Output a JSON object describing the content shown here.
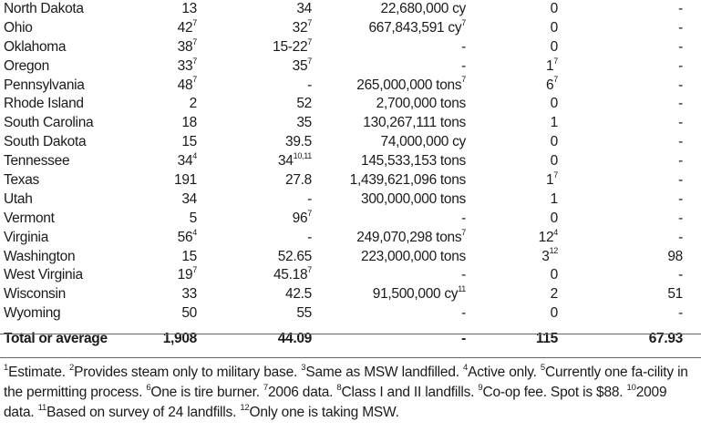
{
  "rows": [
    {
      "state": "North Dakota",
      "facilities": "13",
      "facilities_note": "",
      "fee": "34",
      "fee_note": "",
      "capacity": "22,680,000 cy",
      "capacity_note": "",
      "wte": "0",
      "wte_note": "",
      "last": "-"
    },
    {
      "state": "Ohio",
      "facilities": "42",
      "facilities_note": "7",
      "fee": "32",
      "fee_note": "7",
      "capacity": "667,843,591 cy",
      "capacity_note": "7",
      "wte": "0",
      "wte_note": "",
      "last": "-"
    },
    {
      "state": "Oklahoma",
      "facilities": "38",
      "facilities_note": "7",
      "fee": "15-22",
      "fee_note": "7",
      "capacity": "-",
      "capacity_note": "",
      "wte": "0",
      "wte_note": "",
      "last": "-"
    },
    {
      "state": "Oregon",
      "facilities": "33",
      "facilities_note": "7",
      "fee": "35",
      "fee_note": "7",
      "capacity": "-",
      "capacity_note": "",
      "wte": "1",
      "wte_note": "7",
      "last": "-"
    },
    {
      "state": "Pennsylvania",
      "facilities": "48",
      "facilities_note": "7",
      "fee": "-",
      "fee_note": "",
      "capacity": "265,000,000 tons",
      "capacity_note": "7",
      "wte": "6",
      "wte_note": "7",
      "last": "-"
    },
    {
      "state": "Rhode Island",
      "facilities": "2",
      "facilities_note": "",
      "fee": "52",
      "fee_note": "",
      "capacity": "2,700,000 tons",
      "capacity_note": "",
      "wte": "0",
      "wte_note": "",
      "last": "-"
    },
    {
      "state": "South Carolina",
      "facilities": "18",
      "facilities_note": "",
      "fee": "35",
      "fee_note": "",
      "capacity": "130,267,111 tons",
      "capacity_note": "",
      "wte": "1",
      "wte_note": "",
      "last": "-"
    },
    {
      "state": "South Dakota",
      "facilities": "15",
      "facilities_note": "",
      "fee": "39.5",
      "fee_note": "",
      "capacity": "74,000,000 cy",
      "capacity_note": "",
      "wte": "0",
      "wte_note": "",
      "last": "-"
    },
    {
      "state": "Tennessee",
      "facilities": "34",
      "facilities_note": "4",
      "fee": "34",
      "fee_note": "10,11",
      "capacity": "145,533,153 tons",
      "capacity_note": "",
      "wte": "0",
      "wte_note": "",
      "last": "-"
    },
    {
      "state": "Texas",
      "facilities": "191",
      "facilities_note": "",
      "fee": "27.8",
      "fee_note": "",
      "capacity": "1,439,621,096 tons",
      "capacity_note": "",
      "wte": "1",
      "wte_note": "7",
      "last": "-"
    },
    {
      "state": "Utah",
      "facilities": "34",
      "facilities_note": "",
      "fee": "-",
      "fee_note": "",
      "capacity": "300,000,000 tons",
      "capacity_note": "",
      "wte": "1",
      "wte_note": "",
      "last": "-"
    },
    {
      "state": "Vermont",
      "facilities": "5",
      "facilities_note": "",
      "fee": "96",
      "fee_note": "7",
      "capacity": "-",
      "capacity_note": "",
      "wte": "0",
      "wte_note": "",
      "last": "-"
    },
    {
      "state": "Virginia",
      "facilities": "56",
      "facilities_note": "4",
      "fee": "-",
      "fee_note": "",
      "capacity": "249,070,298 tons",
      "capacity_note": "7",
      "wte": "12",
      "wte_note": "4",
      "last": "-"
    },
    {
      "state": "Washington",
      "facilities": "15",
      "facilities_note": "",
      "fee": "52.65",
      "fee_note": "",
      "capacity": "223,000,000 tons",
      "capacity_note": "",
      "wte": "3",
      "wte_note": "12",
      "last": "98"
    },
    {
      "state": "West Virginia",
      "facilities": "19",
      "facilities_note": "7",
      "fee": "45.18",
      "fee_note": "7",
      "capacity": "-",
      "capacity_note": "",
      "wte": "0",
      "wte_note": "",
      "last": "-"
    },
    {
      "state": "Wisconsin",
      "facilities": "33",
      "facilities_note": "",
      "fee": "42.5",
      "fee_note": "",
      "capacity": "91,500,000 cy",
      "capacity_note": "11",
      "wte": "2",
      "wte_note": "",
      "last": "51"
    },
    {
      "state": "Wyoming",
      "facilities": "50",
      "facilities_note": "",
      "fee": "55",
      "fee_note": "",
      "capacity": "-",
      "capacity_note": "",
      "wte": "0",
      "wte_note": "",
      "last": "-"
    }
  ],
  "total": {
    "state": "Total or average",
    "facilities": "1,908",
    "fee": "44.09",
    "capacity": "-",
    "wte": "115",
    "last": "67.93"
  },
  "footnotes": [
    {
      "n": "1",
      "text": "Estimate. "
    },
    {
      "n": "2",
      "text": "Provides steam only to military base. "
    },
    {
      "n": "3",
      "text": "Same as MSW landfilled. "
    },
    {
      "n": "4",
      "text": "Active only. "
    },
    {
      "n": "5",
      "text": "Currently one fa-cility in the permitting process. "
    },
    {
      "n": "6",
      "text": "One is tire burner. "
    },
    {
      "n": "7",
      "text": "2006 data. "
    },
    {
      "n": "8",
      "text": "Class I and II landfills. "
    },
    {
      "n": "9",
      "text": "Co-op fee. Spot is $88. "
    },
    {
      "n": "10",
      "text": "2009 data. "
    },
    {
      "n": "11",
      "text": "Based on survey of 24 landfills. "
    },
    {
      "n": "12",
      "text": "Only one is taking MSW."
    }
  ]
}
